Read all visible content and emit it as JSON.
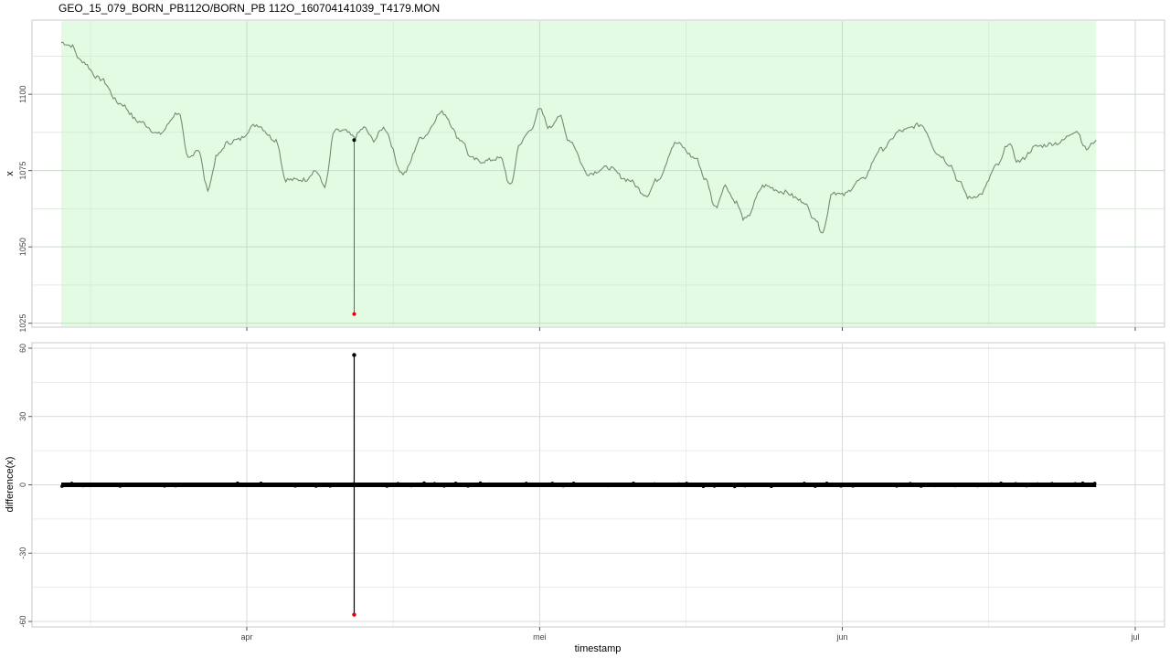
{
  "chart_data": {
    "title": "GEO_15_079_BORN_PB112O/BORN_PB 112O_160704141039_T4179.MON",
    "xlabel": "timestamp",
    "x_ticks": [
      "apr",
      "mei",
      "jun",
      "jul"
    ],
    "x_range": [
      "2016-03-10",
      "2016-07-04"
    ],
    "panels": [
      {
        "type": "line",
        "ylabel": "x",
        "ylim": [
          1024,
          1124
        ],
        "y_ticks": [
          1025,
          1050,
          1075,
          1100
        ],
        "grid": true,
        "shaded_interval": {
          "from": "2016-03-13",
          "to": "2016-06-27",
          "color": "#e2fbe2"
        },
        "line_color": "#6f8f6f",
        "series": [
          {
            "x": [
              "2016-03-13",
              "2016-03-14",
              "2016-03-15",
              "2016-03-17",
              "2016-03-19",
              "2016-03-21",
              "2016-03-23",
              "2016-03-25",
              "2016-03-26",
              "2016-03-27",
              "2016-03-28",
              "2016-03-29",
              "2016-03-30",
              "2016-03-31",
              "2016-04-02",
              "2016-04-04",
              "2016-04-05",
              "2016-04-07",
              "2016-04-08",
              "2016-04-09",
              "2016-04-10",
              "2016-04-11",
              "2016-04-12",
              "2016-04-13",
              "2016-04-14",
              "2016-04-15",
              "2016-04-17",
              "2016-04-19",
              "2016-04-21",
              "2016-04-23",
              "2016-04-24",
              "2016-04-25",
              "2016-04-27",
              "2016-04-28",
              "2016-04-29",
              "2016-04-30",
              "2016-05-01",
              "2016-05-02",
              "2016-05-03",
              "2016-05-04",
              "2016-05-06",
              "2016-05-08",
              "2016-05-10",
              "2016-05-12",
              "2016-05-13",
              "2016-05-15",
              "2016-05-17",
              "2016-05-18",
              "2016-05-19",
              "2016-05-20",
              "2016-05-21",
              "2016-05-22",
              "2016-05-24",
              "2016-05-26",
              "2016-05-28",
              "2016-05-29",
              "2016-05-30",
              "2016-05-31",
              "2016-06-01",
              "2016-06-03",
              "2016-06-05",
              "2016-06-07",
              "2016-06-09",
              "2016-06-11",
              "2016-06-12",
              "2016-06-13",
              "2016-06-14",
              "2016-06-15",
              "2016-06-17",
              "2016-06-18",
              "2016-06-19",
              "2016-06-21",
              "2016-06-23",
              "2016-06-25",
              "2016-06-26",
              "2016-06-27"
            ],
            "y": [
              1117,
              1116,
              1111,
              1105,
              1097,
              1091,
              1087,
              1094,
              1079,
              1082,
              1069,
              1080,
              1084,
              1085,
              1090,
              1085,
              1072,
              1072,
              1075,
              1070,
              1088,
              1088,
              1086,
              1089,
              1085,
              1089,
              1074,
              1086,
              1094,
              1085,
              1079,
              1078,
              1079,
              1070,
              1084,
              1088,
              1095,
              1089,
              1093,
              1085,
              1074,
              1076,
              1072,
              1067,
              1072,
              1084,
              1079,
              1072,
              1063,
              1070,
              1065,
              1059,
              1070,
              1068,
              1065,
              1060,
              1055,
              1068,
              1067,
              1072,
              1082,
              1088,
              1090,
              1080,
              1077,
              1071,
              1066,
              1067,
              1077,
              1084,
              1078,
              1083,
              1084,
              1088,
              1082,
              1085
            ]
          }
        ],
        "outlier": {
          "x": "2016-04-12",
          "y_from": 1085,
          "y_to": 1028
        }
      },
      {
        "type": "scatter",
        "ylabel": "difference(x)",
        "ylim": [
          -62,
          62
        ],
        "y_ticks": [
          -60,
          -30,
          0,
          30,
          60
        ],
        "grid": true,
        "baseline": {
          "y": 0,
          "from": "2016-03-13",
          "to": "2016-06-27"
        },
        "spike": {
          "x": "2016-04-12",
          "y_max": 57,
          "y_min": -57
        }
      }
    ]
  }
}
